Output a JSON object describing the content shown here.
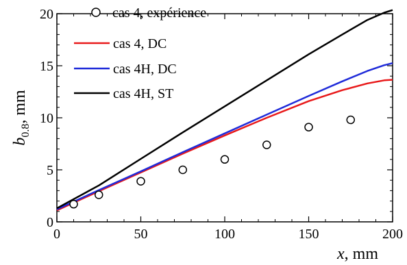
{
  "chart_data": {
    "type": "line",
    "title": "",
    "xlabel_var": "x",
    "xlabel_unit": ", mm",
    "ylabel_var": "b",
    "ylabel_sub": "0.8",
    "ylabel_unit": ", mm",
    "xlim": [
      0,
      200
    ],
    "ylim": [
      0,
      20
    ],
    "xticks": [
      0,
      50,
      100,
      150,
      200
    ],
    "yticks": [
      0,
      5,
      10,
      15,
      20
    ],
    "grid": false,
    "legend_position": "top-left",
    "series": [
      {
        "name": "cas 4, expérience",
        "style": "markers",
        "color": "#000000",
        "x": [
          10,
          25,
          50,
          75,
          100,
          125,
          150,
          175
        ],
        "y": [
          1.7,
          2.6,
          3.9,
          5.0,
          6.0,
          7.4,
          9.1,
          9.8
        ]
      },
      {
        "name": "cas 4, DC",
        "style": "line",
        "color": "#e8191a",
        "x": [
          0,
          25,
          50,
          75,
          100,
          125,
          150,
          170,
          185,
          195,
          200
        ],
        "y": [
          1.1,
          2.95,
          4.75,
          6.55,
          8.3,
          10.0,
          11.6,
          12.65,
          13.3,
          13.6,
          13.65
        ]
      },
      {
        "name": "cas 4H, DC",
        "style": "line",
        "color": "#1f2bd9",
        "x": [
          0,
          25,
          50,
          75,
          100,
          125,
          150,
          170,
          185,
          195,
          200
        ],
        "y": [
          1.2,
          3.05,
          4.85,
          6.7,
          8.5,
          10.3,
          12.1,
          13.5,
          14.5,
          15.05,
          15.25
        ]
      },
      {
        "name": "cas 4H, ST",
        "style": "line",
        "color": "#000000",
        "x": [
          0,
          25,
          50,
          75,
          100,
          125,
          150,
          170,
          185,
          195,
          200
        ],
        "y": [
          1.3,
          3.5,
          6.05,
          8.6,
          11.1,
          13.6,
          16.1,
          18.0,
          19.4,
          20.1,
          20.35
        ]
      }
    ]
  }
}
